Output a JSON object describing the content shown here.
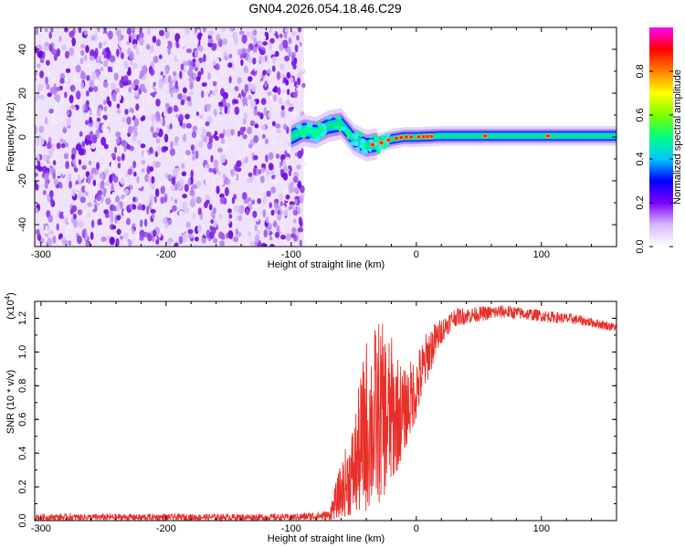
{
  "figure": {
    "title": "GN04.2026.054.18.46.C29"
  },
  "chart_data": [
    {
      "type": "heatmap",
      "title": "GN04.2026.054.18.46.C29",
      "xlabel": "Height of straight line (km)",
      "ylabel": "Frequency (Hz)",
      "xlim": [
        -305,
        160
      ],
      "ylim": [
        -50,
        50
      ],
      "x_ticks": [
        -300,
        -200,
        -100,
        0,
        100
      ],
      "y_ticks": [
        -40,
        -20,
        0,
        20,
        40
      ],
      "x_tick_labels": [
        "-300",
        "-200",
        "-100",
        "0",
        "100"
      ],
      "y_tick_labels": [
        "-40",
        "-20",
        "0",
        "20",
        "40"
      ],
      "noise_region_x": [
        -305,
        -90
      ],
      "signal_track": [
        {
          "x": -100,
          "freq": 0
        },
        {
          "x": -90,
          "freq": 3
        },
        {
          "x": -80,
          "freq": 2
        },
        {
          "x": -70,
          "freq": 5
        },
        {
          "x": -60,
          "freq": 6
        },
        {
          "x": -50,
          "freq": -1
        },
        {
          "x": -40,
          "freq": -4
        },
        {
          "x": -30,
          "freq": -3
        },
        {
          "x": -20,
          "freq": -1
        },
        {
          "x": -10,
          "freq": 0
        },
        {
          "x": 0,
          "freq": 0
        },
        {
          "x": 20,
          "freq": 0.5
        },
        {
          "x": 60,
          "freq": 0.5
        },
        {
          "x": 100,
          "freq": 0.5
        },
        {
          "x": 160,
          "freq": 0.5
        }
      ],
      "colorbar": {
        "label": "Normalized spectral amplitude",
        "range": [
          0,
          1
        ],
        "ticks": [
          0.0,
          0.2,
          0.4,
          0.6,
          0.8
        ],
        "tick_labels": [
          "0.0",
          "0.2",
          "0.4",
          "0.6",
          "0.8"
        ],
        "colors": [
          "#ffffff",
          "#d8b8f8",
          "#8000ff",
          "#0000ff",
          "#00c8ff",
          "#00ff80",
          "#80ff00",
          "#ffff00",
          "#ff8000",
          "#ff0000",
          "#ff00ff"
        ]
      }
    },
    {
      "type": "line",
      "xlabel": "Height of straight line (km)",
      "ylabel": "SNR (10 * v/v)",
      "multiplier_label": "(x10",
      "multiplier_exp": "4",
      "multiplier_close": ")",
      "xlim": [
        -305,
        160
      ],
      "ylim": [
        0,
        1.3
      ],
      "x_ticks": [
        -300,
        -200,
        -100,
        0,
        100
      ],
      "y_ticks": [
        0.0,
        0.2,
        0.4,
        0.6,
        0.8,
        1.0,
        1.2
      ],
      "x_tick_labels": [
        "-300",
        "-200",
        "-100",
        "0",
        "100"
      ],
      "y_tick_labels": [
        "0.0",
        "0.2",
        "0.4",
        "0.6",
        "0.8",
        "1.0",
        "1.2"
      ],
      "series": [
        {
          "name": "SNR",
          "color": "#e8302a",
          "envelope": [
            {
              "x": -305,
              "low": 0.0,
              "high": 0.04
            },
            {
              "x": -100,
              "low": 0.0,
              "high": 0.04
            },
            {
              "x": -70,
              "low": 0.0,
              "high": 0.06
            },
            {
              "x": -60,
              "low": 0.02,
              "high": 0.35
            },
            {
              "x": -50,
              "low": 0.03,
              "high": 0.6
            },
            {
              "x": -40,
              "low": 0.05,
              "high": 1.1
            },
            {
              "x": -30,
              "low": 0.1,
              "high": 1.2
            },
            {
              "x": -20,
              "low": 0.2,
              "high": 1.1
            },
            {
              "x": -10,
              "low": 0.4,
              "high": 0.9
            },
            {
              "x": 0,
              "low": 0.6,
              "high": 1.0
            },
            {
              "x": 10,
              "low": 0.85,
              "high": 1.15
            },
            {
              "x": 20,
              "low": 1.05,
              "high": 1.2
            },
            {
              "x": 30,
              "low": 1.15,
              "high": 1.26
            },
            {
              "x": 50,
              "low": 1.18,
              "high": 1.27
            },
            {
              "x": 70,
              "low": 1.2,
              "high": 1.28
            },
            {
              "x": 100,
              "low": 1.18,
              "high": 1.25
            },
            {
              "x": 130,
              "low": 1.16,
              "high": 1.22
            },
            {
              "x": 160,
              "low": 1.12,
              "high": 1.17
            }
          ]
        }
      ]
    }
  ]
}
